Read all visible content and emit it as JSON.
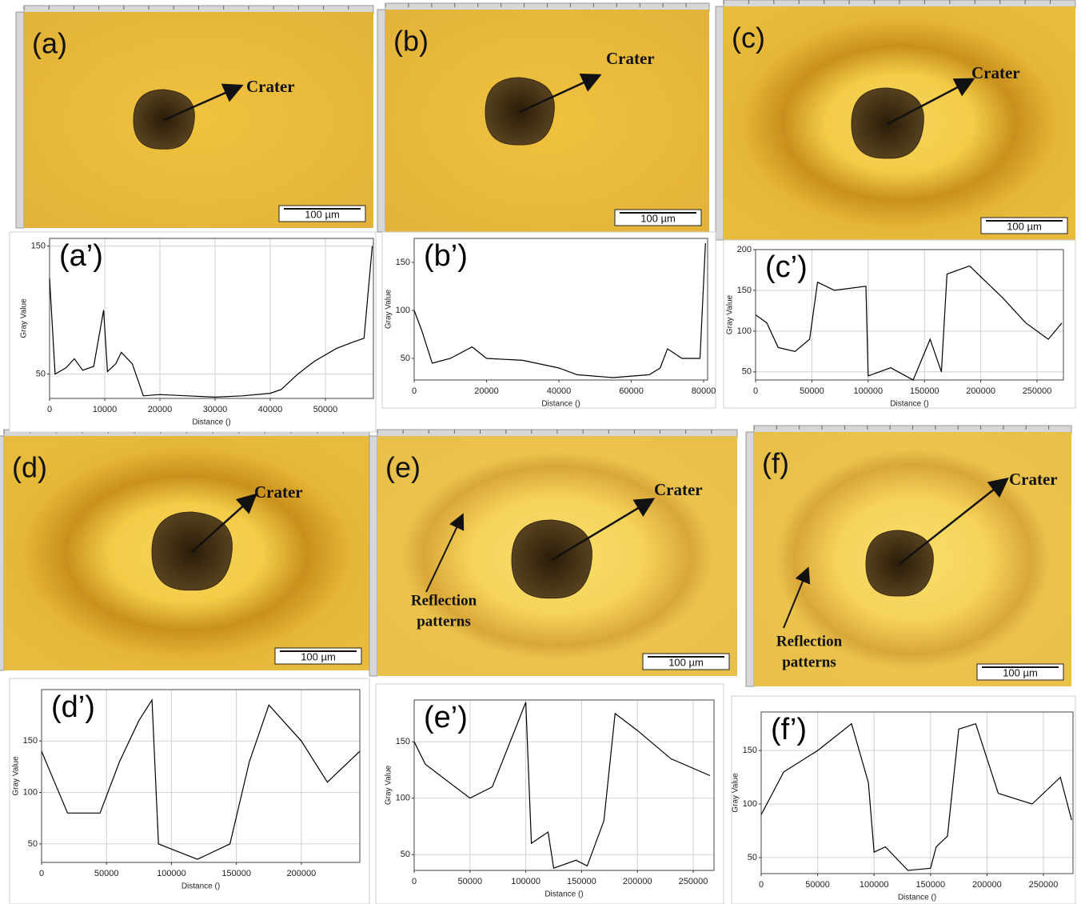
{
  "micrographs": [
    {
      "label": "(a)",
      "annotation": "Crater",
      "scale_bar": "100 µm"
    },
    {
      "label": "(b)",
      "annotation": "Crater",
      "scale_bar": "100 µm"
    },
    {
      "label": "(c)",
      "annotation": "Crater",
      "scale_bar": "100 µm"
    },
    {
      "label": "(d)",
      "annotation": "Crater",
      "scale_bar": "100 µm"
    },
    {
      "label": "(e)",
      "annotation": "Crater",
      "scale_bar": "100 µm",
      "note_lines": [
        "Reflection",
        "patterns"
      ]
    },
    {
      "label": "(f)",
      "annotation": "Crater",
      "scale_bar": "100 µm",
      "note_lines": [
        "Reflection",
        "patterns"
      ]
    }
  ],
  "chart_data": [
    {
      "type": "line",
      "title": "(a’)",
      "ylabel": "Gray Value",
      "xlabel": "Distance ()",
      "color": "#000000",
      "grid": true,
      "x": [
        0,
        1000,
        3000,
        4500,
        6000,
        8000,
        9800,
        10500,
        12000,
        13000,
        15000,
        17000,
        20000,
        25000,
        30000,
        35000,
        40000,
        42000,
        45000,
        48000,
        52000,
        55000,
        57000,
        58500
      ],
      "values": [
        125,
        50,
        55,
        62,
        53,
        56,
        100,
        52,
        58,
        67,
        58,
        33,
        34,
        33,
        32,
        33,
        35,
        38,
        50,
        60,
        70,
        75,
        78,
        150
      ],
      "xlim": [
        0,
        58700
      ],
      "xticks": [
        0,
        10000,
        20000,
        30000,
        40000,
        50000
      ],
      "ylim": [
        31,
        156
      ],
      "yticks": [
        50,
        150
      ]
    },
    {
      "type": "line",
      "title": "(b’)",
      "ylabel": "Gray Value",
      "xlabel": "Distance ()",
      "color": "#000000",
      "grid": false,
      "x": [
        0,
        2000,
        5000,
        10000,
        16000,
        20000,
        30000,
        40000,
        45000,
        55000,
        65000,
        68000,
        70000,
        74000,
        79000,
        80500
      ],
      "values": [
        100,
        80,
        45,
        50,
        62,
        50,
        48,
        40,
        33,
        30,
        33,
        40,
        60,
        50,
        50,
        170
      ],
      "xlim": [
        0,
        81100
      ],
      "xticks": [
        0,
        20000,
        40000,
        60000,
        80000
      ],
      "ylim": [
        27.5,
        175
      ],
      "yticks": [
        50,
        100,
        150
      ]
    },
    {
      "type": "line",
      "title": "(c’)",
      "ylabel": "Gray Value",
      "xlabel": "Distance ()",
      "color": "#000000",
      "grid": true,
      "x": [
        0,
        10000,
        20000,
        35000,
        48000,
        55000,
        70000,
        98000,
        100000,
        120000,
        140000,
        155000,
        165000,
        170000,
        190000,
        220000,
        240000,
        260000,
        272000
      ],
      "values": [
        120,
        110,
        80,
        75,
        90,
        160,
        150,
        155,
        45,
        55,
        40,
        90,
        50,
        170,
        180,
        140,
        110,
        90,
        110
      ],
      "xlim": [
        0,
        273400
      ],
      "xticks": [
        0,
        50000,
        100000,
        150000,
        200000,
        250000
      ],
      "ylim": [
        40,
        200
      ],
      "yticks": [
        50,
        100,
        150,
        200
      ]
    },
    {
      "type": "line",
      "title": "(d’)",
      "ylabel": "Gray Value",
      "xlabel": "Distance ()",
      "color": "#000000",
      "grid": true,
      "x": [
        0,
        10000,
        20000,
        45000,
        60000,
        75000,
        85000,
        90000,
        100000,
        120000,
        145000,
        160000,
        175000,
        200000,
        220000,
        245000
      ],
      "values": [
        140,
        110,
        80,
        80,
        130,
        170,
        190,
        50,
        45,
        35,
        50,
        130,
        185,
        150,
        110,
        140
      ],
      "xlim": [
        0,
        245000
      ],
      "xticks": [
        0,
        50000,
        100000,
        150000,
        200000
      ],
      "ylim": [
        32,
        200
      ],
      "yticks": [
        50,
        100,
        150
      ]
    },
    {
      "type": "line",
      "title": "(e’)",
      "ylabel": "Gray Value",
      "xlabel": "Distance ()",
      "color": "#000000",
      "grid": true,
      "x": [
        0,
        10000,
        50000,
        70000,
        90000,
        100000,
        105000,
        120000,
        125000,
        145000,
        155000,
        170000,
        180000,
        200000,
        230000,
        265000
      ],
      "values": [
        150,
        130,
        100,
        110,
        160,
        185,
        60,
        70,
        38,
        45,
        40,
        80,
        175,
        160,
        135,
        120
      ],
      "xlim": [
        0,
        268600
      ],
      "xticks": [
        0,
        50000,
        100000,
        150000,
        200000,
        250000
      ],
      "ylim": [
        36,
        187
      ],
      "yticks": [
        50,
        100,
        150
      ]
    },
    {
      "type": "line",
      "title": "(f’)",
      "ylabel": "Gray Value",
      "xlabel": "Distance ()",
      "color": "#000000",
      "grid": true,
      "x": [
        0,
        20000,
        50000,
        80000,
        95000,
        100000,
        110000,
        130000,
        150000,
        155000,
        165000,
        175000,
        190000,
        210000,
        240000,
        265000,
        275000
      ],
      "values": [
        90,
        130,
        150,
        175,
        120,
        55,
        60,
        38,
        40,
        60,
        70,
        170,
        175,
        110,
        100,
        125,
        85
      ],
      "xlim": [
        0,
        276200
      ],
      "xticks": [
        0,
        50000,
        100000,
        150000,
        200000,
        250000
      ],
      "ylim": [
        35,
        186
      ],
      "yticks": [
        50,
        100,
        150
      ]
    }
  ]
}
